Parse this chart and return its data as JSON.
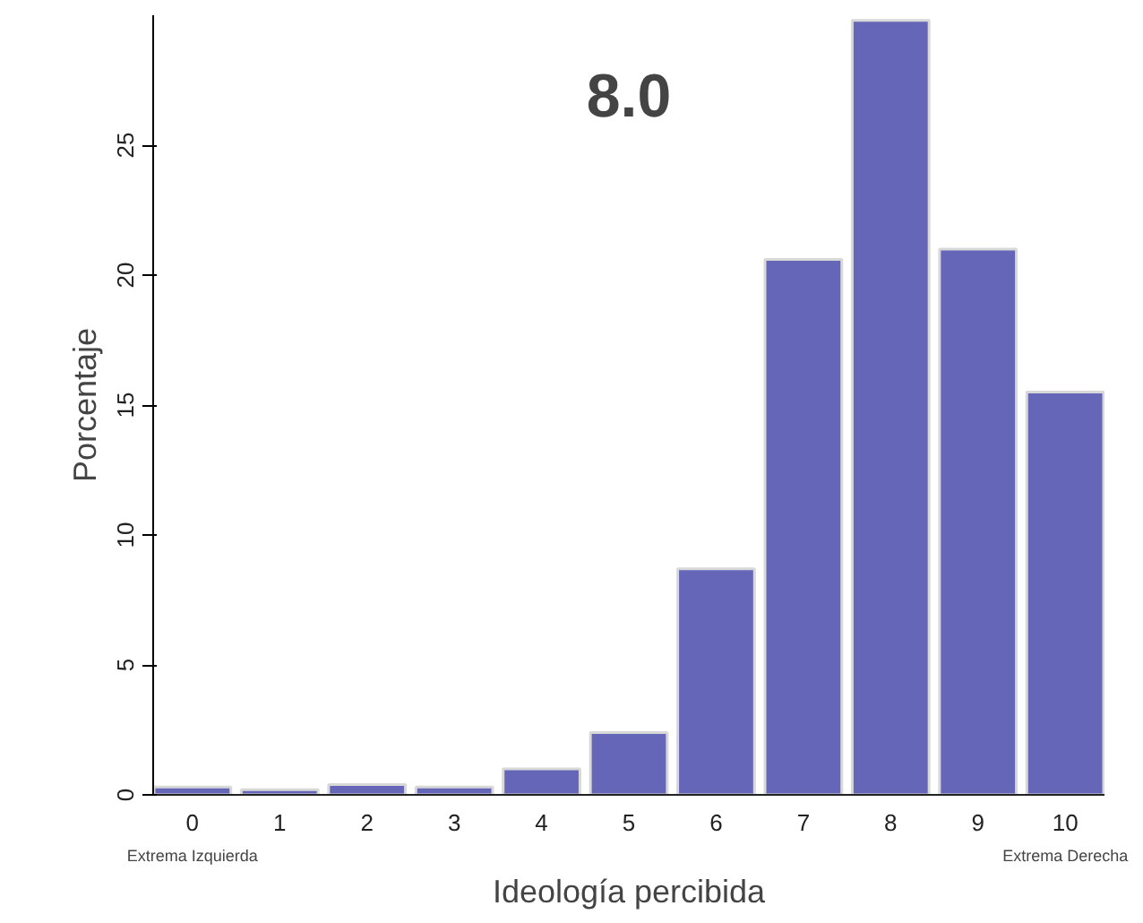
{
  "chart_data": {
    "type": "bar",
    "xlabel": "Ideología percibida",
    "ylabel": "Porcentaje",
    "categories": [
      "0",
      "1",
      "2",
      "3",
      "4",
      "5",
      "6",
      "7",
      "8",
      "9",
      "10"
    ],
    "values": [
      0.3,
      0.2,
      0.4,
      0.3,
      1.0,
      2.4,
      8.7,
      20.6,
      29.8,
      21.0,
      15.5
    ],
    "color": "#6666b8",
    "ylim": [
      0,
      30
    ],
    "yticks": [
      0,
      5,
      10,
      15,
      20,
      25
    ],
    "grid": false,
    "annotations": [
      "8.0",
      "Extrema Izquierda",
      "Extrema Derecha"
    ]
  }
}
